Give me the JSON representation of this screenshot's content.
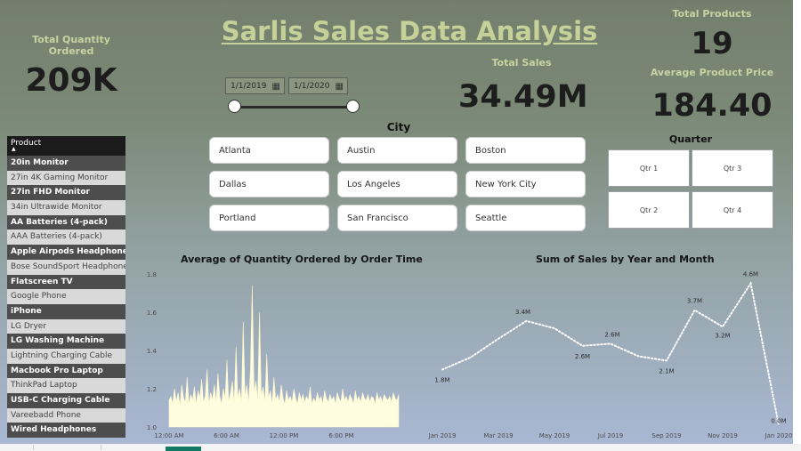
{
  "title": "Sarlis Sales Data Analysis",
  "kpis": {
    "total_quantity": {
      "label": "Total Quantity Ordered",
      "value": "209K"
    },
    "total_sales": {
      "label": "Total Sales",
      "value": "34.49M"
    },
    "total_products": {
      "label": "Total Products",
      "value": "19"
    },
    "avg_price": {
      "label": "Average Product Price",
      "value": "184.40"
    }
  },
  "date_slicer": {
    "start": "1/1/2019",
    "end": "1/1/2020",
    "start_fraction": 0,
    "end_fraction": 1
  },
  "city_slicer": {
    "title": "City",
    "items": [
      "Atlanta",
      "Austin",
      "Boston",
      "Dallas",
      "Los Angeles",
      "New York City",
      "Portland",
      "San Francisco",
      "Seattle"
    ]
  },
  "quarter_slicer": {
    "title": "Quarter",
    "items": [
      "Qtr 1",
      "Qtr 3",
      "Qtr 2",
      "Qtr 4"
    ]
  },
  "product_slicer": {
    "header": "Product",
    "items": [
      "20in Monitor",
      "27in 4K Gaming Monitor",
      "27in FHD Monitor",
      "34in Ultrawide Monitor",
      "AA Batteries (4-pack)",
      "AAA Batteries (4-pack)",
      "Apple Airpods Headphones",
      "Bose SoundSport Headphones",
      "Flatscreen TV",
      "Google Phone",
      "iPhone",
      "LG Dryer",
      "LG Washing Machine",
      "Lightning Charging Cable",
      "Macbook Pro Laptop",
      "ThinkPad Laptop",
      "USB-C Charging Cable",
      "Vareebadd Phone",
      "Wired Headphones"
    ]
  },
  "colors": {
    "accent_text": "#c8d3a2",
    "kpi_value": "#1d1d1d",
    "area_fill": "#fffde0",
    "line_series": "#ffffff",
    "active_tab": "#127a62"
  },
  "chart_data": [
    {
      "type": "area",
      "title": "Average of Quantity Ordered by Order Time",
      "xlabel": "",
      "ylabel": "",
      "x_ticks": [
        "12:00 AM",
        "6:00 AM",
        "12:00 PM",
        "6:00 PM"
      ],
      "y_ticks": [
        "1.0",
        "1.2",
        "1.4",
        "1.6",
        "1.8"
      ],
      "ylim": [
        1.0,
        1.8
      ],
      "x_range_hours": [
        0,
        24
      ],
      "series": [
        {
          "values": [
            1.14,
            1.16,
            1.12,
            1.2,
            1.13,
            1.18,
            1.11,
            1.22,
            1.15,
            1.13,
            1.26,
            1.12,
            1.17,
            1.14,
            1.21,
            1.12,
            1.19,
            1.15,
            1.25,
            1.13,
            1.16,
            1.3,
            1.12,
            1.18,
            1.14,
            1.22,
            1.13,
            1.28,
            1.16,
            1.12,
            1.2,
            1.15,
            1.35,
            1.13,
            1.18,
            1.24,
            1.12,
            1.42,
            1.15,
            1.2,
            1.13,
            1.55,
            1.16,
            1.22,
            1.13,
            1.3,
            1.74,
            1.18,
            1.24,
            1.14,
            1.6,
            1.16,
            1.21,
            1.13,
            1.38,
            1.15,
            1.19,
            1.12,
            1.26,
            1.14,
            1.17,
            1.13,
            1.22,
            1.15,
            1.12,
            1.19,
            1.14,
            1.16,
            1.13,
            1.2,
            1.15,
            1.12,
            1.18,
            1.14,
            1.17,
            1.13,
            1.16,
            1.14,
            1.21,
            1.12,
            1.15,
            1.13,
            1.18,
            1.14,
            1.16,
            1.12,
            1.19,
            1.15,
            1.13,
            1.17,
            1.14,
            1.16,
            1.12,
            1.18,
            1.15,
            1.13,
            1.2,
            1.14,
            1.16,
            1.13,
            1.17,
            1.15,
            1.12,
            1.19,
            1.14,
            1.16,
            1.13,
            1.18,
            1.15,
            1.14,
            1.17,
            1.13,
            1.16,
            1.15,
            1.12,
            1.18,
            1.14,
            1.16,
            1.13,
            1.17,
            1.15,
            1.14,
            1.16,
            1.13,
            1.18,
            1.15,
            1.14,
            1.17
          ]
        }
      ]
    },
    {
      "type": "line",
      "title": "Sum of Sales by Year and Month",
      "xlabel": "",
      "ylabel": "",
      "x_ticks": [
        "Jan 2019",
        "Mar 2019",
        "May 2019",
        "Jul 2019",
        "Sep 2019",
        "Nov 2019",
        "Jan 2020"
      ],
      "categories": [
        "Jan 2019",
        "Feb 2019",
        "Mar 2019",
        "Apr 2019",
        "May 2019",
        "Jun 2019",
        "Jul 2019",
        "Aug 2019",
        "Sep 2019",
        "Oct 2019",
        "Nov 2019",
        "Dec 2019",
        "Jan 2020"
      ],
      "ylim": [
        0,
        4.8
      ],
      "series": [
        {
          "values": [
            1.81,
            2.2,
            2.81,
            3.39,
            3.15,
            2.58,
            2.65,
            2.24,
            2.1,
            3.74,
            3.2,
            4.61,
            0.01
          ],
          "labels": [
            "1.8M",
            "",
            "",
            "3.4M",
            "",
            "2.6M",
            "2.6M",
            "",
            "2.1M",
            "3.7M",
            "3.2M",
            "4.6M",
            "0.0M"
          ]
        }
      ]
    }
  ]
}
